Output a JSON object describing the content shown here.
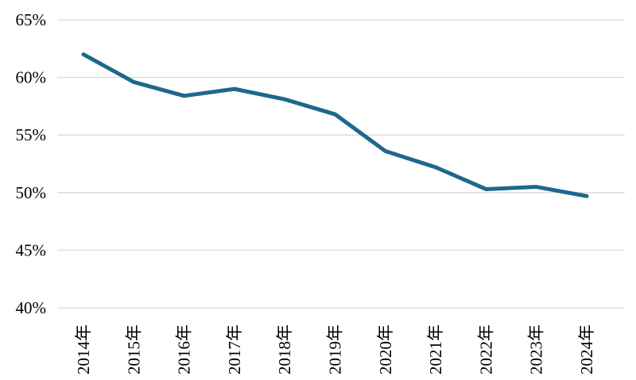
{
  "chart": {
    "background": "#ffffff",
    "line_color": "#1e688c",
    "gridline_color": "#d9d9d9",
    "label_color": "#000000"
  },
  "chart_data": {
    "type": "line",
    "title": "",
    "xlabel": "",
    "ylabel": "",
    "categories": [
      "2014年",
      "2015年",
      "2016年",
      "2017年",
      "2018年",
      "2019年",
      "2020年",
      "2021年",
      "2022年",
      "2023年",
      "2024年"
    ],
    "series": [
      {
        "name": "",
        "values": [
          62.0,
          59.6,
          58.4,
          59.0,
          58.1,
          56.8,
          53.6,
          52.2,
          50.3,
          50.5,
          49.7
        ]
      }
    ],
    "ylim": [
      40,
      65
    ],
    "yticks": [
      40,
      45,
      50,
      55,
      60,
      65
    ],
    "ytick_labels": [
      "40%",
      "45%",
      "50%",
      "55%",
      "60%",
      "65%"
    ],
    "grid": true,
    "legend_position": "none",
    "x_tick_rotation": 90
  }
}
